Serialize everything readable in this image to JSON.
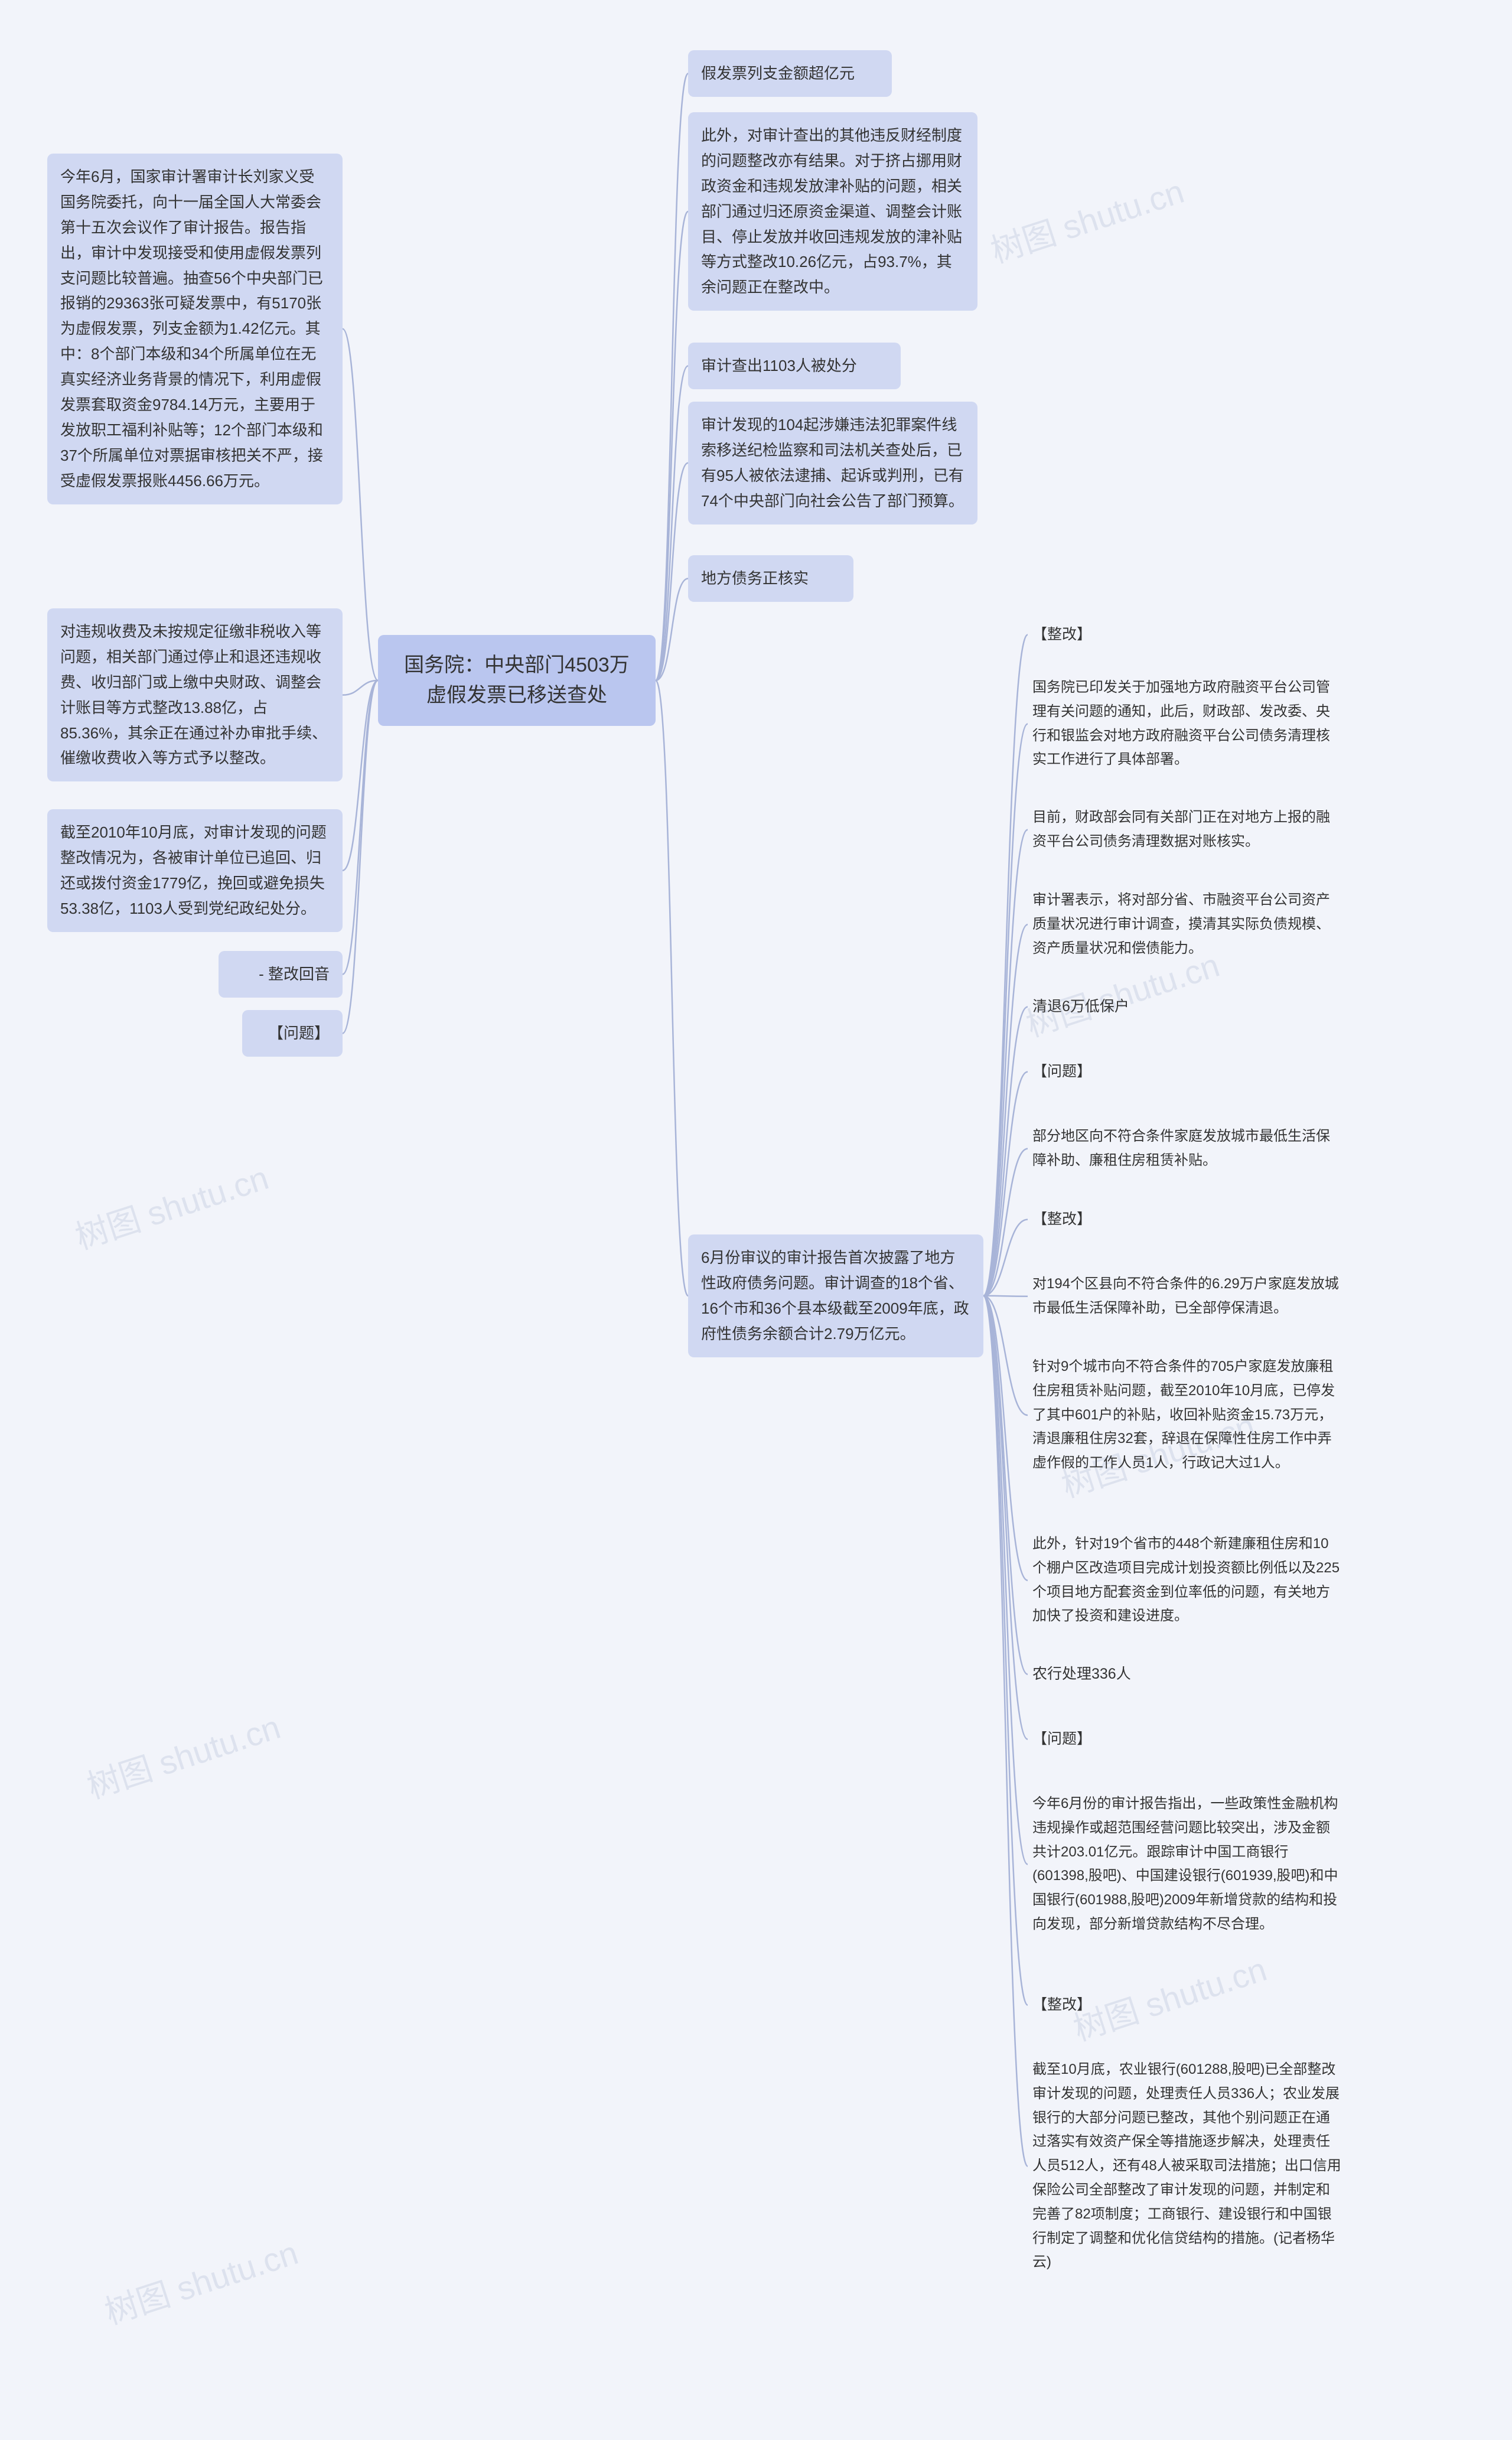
{
  "watermark": "树图 shutu.cn",
  "colors": {
    "page_bg": "#f2f4fa",
    "center_bg": "#bac6ef",
    "second_bg": "#d0d8f2",
    "connector": "#a8b4d8",
    "text": "#333333",
    "watermark": "#dde2ee"
  },
  "center": {
    "label": "国务院：中央部门4503万\n虚假发票已移送查处"
  },
  "left": [
    {
      "id": "l1",
      "text": "今年6月，国家审计署审计长刘家义受国务院委托，向十一届全国人大常委会第十五次会议作了审计报告。报告指出，审计中发现接受和使用虚假发票列支问题比较普遍。抽查56个中央部门已报销的29363张可疑发票中，有5170张为虚假发票，列支金额为1.42亿元。其中：8个部门本级和34个所属单位在无真实经济业务背景的情况下，利用虚假发票套取资金9784.14万元，主要用于发放职工福利补贴等；12个部门本级和37个所属单位对票据审核把关不严，接受虚假发票报账4456.66万元。"
    },
    {
      "id": "l2",
      "text": "对违规收费及未按规定征缴非税收入等问题，相关部门通过停止和退还违规收费、收归部门或上缴中央财政、调整会计账目等方式整改13.88亿，占85.36%，其余正在通过补办审批手续、催缴收费收入等方式予以整改。"
    },
    {
      "id": "l3",
      "text": "截至2010年10月底，对审计发现的问题整改情况为，各被审计单位已追回、归还或拨付资金1779亿，挽回或避免损失53.38亿，1103人受到党纪政纪处分。"
    },
    {
      "id": "l4",
      "text": "- 整改回音"
    },
    {
      "id": "l5",
      "text": "【问题】"
    }
  ],
  "right": [
    {
      "id": "r1",
      "text": "假发票列支金额超亿元"
    },
    {
      "id": "r2",
      "text": "此外，对审计查出的其他违反财经制度的问题整改亦有结果。对于挤占挪用财政资金和违规发放津补贴的问题，相关部门通过归还原资金渠道、调整会计账目、停止发放并收回违规发放的津补贴等方式整改10.26亿元，占93.7%，其余问题正在整改中。"
    },
    {
      "id": "r3",
      "text": "审计查出1103人被处分"
    },
    {
      "id": "r4",
      "text": "审计发现的104起涉嫌违法犯罪案件线索移送纪检监察和司法机关查处后，已有95人被依法逮捕、起诉或判刑，已有74个中央部门向社会公告了部门预算。"
    },
    {
      "id": "r5",
      "text": "地方债务正核实"
    },
    {
      "id": "r6",
      "text": "6月份审议的审计报告首次披露了地方性政府债务问题。审计调查的18个省、16个市和36个县本级截至2009年底，政府性债务余额合计2.79万亿元。",
      "children": [
        {
          "id": "r6a",
          "text": "【整改】"
        },
        {
          "id": "r6b",
          "text": "国务院已印发关于加强地方政府融资平台公司管理有关问题的通知，此后，财政部、发改委、央行和银监会对地方政府融资平台公司债务清理核实工作进行了具体部署。"
        },
        {
          "id": "r6c",
          "text": "目前，财政部会同有关部门正在对地方上报的融资平台公司债务清理数据对账核实。"
        },
        {
          "id": "r6d",
          "text": "审计署表示，将对部分省、市融资平台公司资产质量状况进行审计调查，摸清其实际负债规模、资产质量状况和偿债能力。"
        },
        {
          "id": "r6e",
          "text": "清退6万低保户"
        },
        {
          "id": "r6f",
          "text": "【问题】"
        },
        {
          "id": "r6g",
          "text": "部分地区向不符合条件家庭发放城市最低生活保障补助、廉租住房租赁补贴。"
        },
        {
          "id": "r6h",
          "text": "【整改】"
        },
        {
          "id": "r6i",
          "text": "对194个区县向不符合条件的6.29万户家庭发放城市最低生活保障补助，已全部停保清退。"
        },
        {
          "id": "r6j",
          "text": "针对9个城市向不符合条件的705户家庭发放廉租住房租赁补贴问题，截至2010年10月底，已停发了其中601户的补贴，收回补贴资金15.73万元，清退廉租住房32套，辞退在保障性住房工作中弄虚作假的工作人员1人，行政记大过1人。"
        },
        {
          "id": "r6k",
          "text": "此外，针对19个省市的448个新建廉租住房和10个棚户区改造项目完成计划投资额比例低以及225个项目地方配套资金到位率低的问题，有关地方加快了投资和建设进度。"
        },
        {
          "id": "r6l",
          "text": "农行处理336人"
        },
        {
          "id": "r6m",
          "text": "【问题】"
        },
        {
          "id": "r6n",
          "text": "今年6月份的审计报告指出，一些政策性金融机构违规操作或超范围经营问题比较突出，涉及金额共计203.01亿元。跟踪审计中国工商银行(601398,股吧)、中国建设银行(601939,股吧)和中国银行(601988,股吧)2009年新增贷款的结构和投向发现，部分新增贷款结构不尽合理。"
        },
        {
          "id": "r6o",
          "text": "【整改】"
        },
        {
          "id": "r6p",
          "text": "截至10月底，农业银行(601288,股吧)已全部整改审计发现的问题，处理责任人员336人；农业发展银行的大部分问题已整改，其他个别问题正在通过落实有效资产保全等措施逐步解决，处理责任人员512人，还有48人被采取司法措施；出口信用保险公司全部整改了审计发现的问题，并制定和完善了82项制度；工商银行、建设银行和中国银行制定了调整和优化信贷结构的措施。(记者杨华云)"
        }
      ]
    }
  ]
}
